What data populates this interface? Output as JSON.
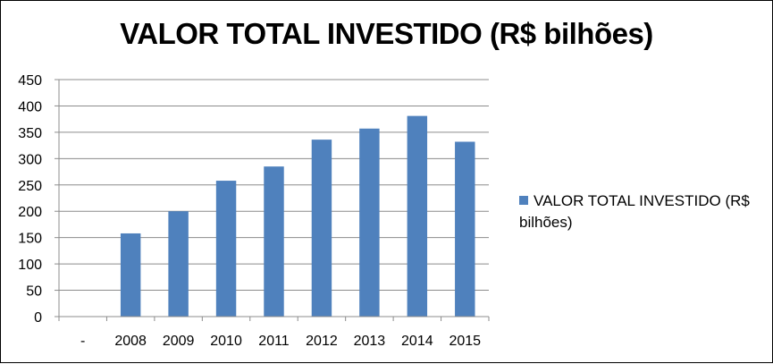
{
  "chart_data": {
    "type": "bar",
    "title": "VALOR TOTAL INVESTIDO (R$ bilhões)",
    "categories": [
      "-",
      "2008",
      "2009",
      "2010",
      "2011",
      "2012",
      "2013",
      "2014",
      "2015"
    ],
    "series": [
      {
        "name": "VALOR TOTAL INVESTIDO (R$ bilhões)",
        "values": [
          null,
          158,
          200,
          258,
          285,
          336,
          357,
          381,
          332
        ],
        "color": "#4f81bd"
      }
    ],
    "ylim": [
      0,
      450
    ],
    "yticks": [
      "0",
      "50",
      "100",
      "150",
      "200",
      "250",
      "300",
      "350",
      "400",
      "450"
    ],
    "xlabel": "",
    "ylabel": "",
    "grid": true,
    "legend_position": "right"
  }
}
